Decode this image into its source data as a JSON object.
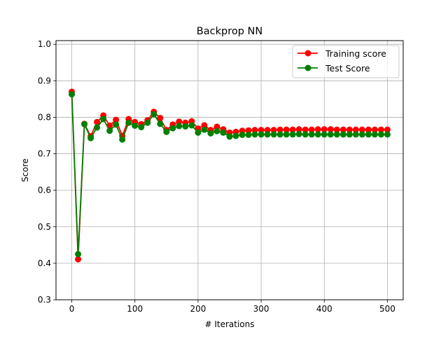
{
  "chart_data": {
    "type": "line",
    "title": "Backprop NN",
    "xlabel": "# Iterations",
    "ylabel": "Score",
    "xlim": [
      -25,
      525
    ],
    "ylim": [
      0.3,
      1.01
    ],
    "xticks": [
      0,
      100,
      200,
      300,
      400,
      500
    ],
    "yticks": [
      0.3,
      0.4,
      0.5,
      0.6,
      0.7,
      0.8,
      0.9,
      1.0
    ],
    "xtick_labels": [
      "0",
      "100",
      "200",
      "300",
      "400",
      "500"
    ],
    "ytick_labels": [
      "0.3",
      "0.4",
      "0.5",
      "0.6",
      "0.7",
      "0.8",
      "0.9",
      "1.0"
    ],
    "grid": true,
    "legend_position": "top-right",
    "x": [
      0,
      10,
      20,
      30,
      40,
      50,
      60,
      70,
      80,
      90,
      100,
      110,
      120,
      130,
      140,
      150,
      160,
      170,
      180,
      190,
      200,
      210,
      220,
      230,
      240,
      250,
      260,
      270,
      280,
      290,
      300,
      310,
      320,
      330,
      340,
      350,
      360,
      370,
      380,
      390,
      400,
      410,
      420,
      430,
      440,
      450,
      460,
      470,
      480,
      490,
      500
    ],
    "series": [
      {
        "name": "Training score",
        "color": "#ff0000",
        "values": [
          0.87,
          0.411,
          0.782,
          0.748,
          0.787,
          0.805,
          0.777,
          0.793,
          0.749,
          0.795,
          0.787,
          0.781,
          0.792,
          0.815,
          0.798,
          0.765,
          0.78,
          0.788,
          0.785,
          0.789,
          0.769,
          0.778,
          0.765,
          0.774,
          0.767,
          0.758,
          0.76,
          0.763,
          0.764,
          0.765,
          0.765,
          0.765,
          0.765,
          0.766,
          0.766,
          0.766,
          0.767,
          0.766,
          0.766,
          0.767,
          0.767,
          0.767,
          0.766,
          0.766,
          0.766,
          0.766,
          0.766,
          0.766,
          0.766,
          0.766,
          0.766
        ]
      },
      {
        "name": "Test Score",
        "color": "#008000",
        "values": [
          0.863,
          0.425,
          0.781,
          0.743,
          0.772,
          0.795,
          0.763,
          0.78,
          0.739,
          0.785,
          0.777,
          0.773,
          0.785,
          0.808,
          0.782,
          0.76,
          0.77,
          0.776,
          0.775,
          0.778,
          0.758,
          0.766,
          0.756,
          0.762,
          0.758,
          0.747,
          0.749,
          0.752,
          0.752,
          0.753,
          0.753,
          0.753,
          0.753,
          0.753,
          0.753,
          0.753,
          0.754,
          0.753,
          0.753,
          0.753,
          0.753,
          0.753,
          0.753,
          0.753,
          0.753,
          0.753,
          0.753,
          0.753,
          0.753,
          0.753,
          0.753
        ]
      }
    ]
  }
}
